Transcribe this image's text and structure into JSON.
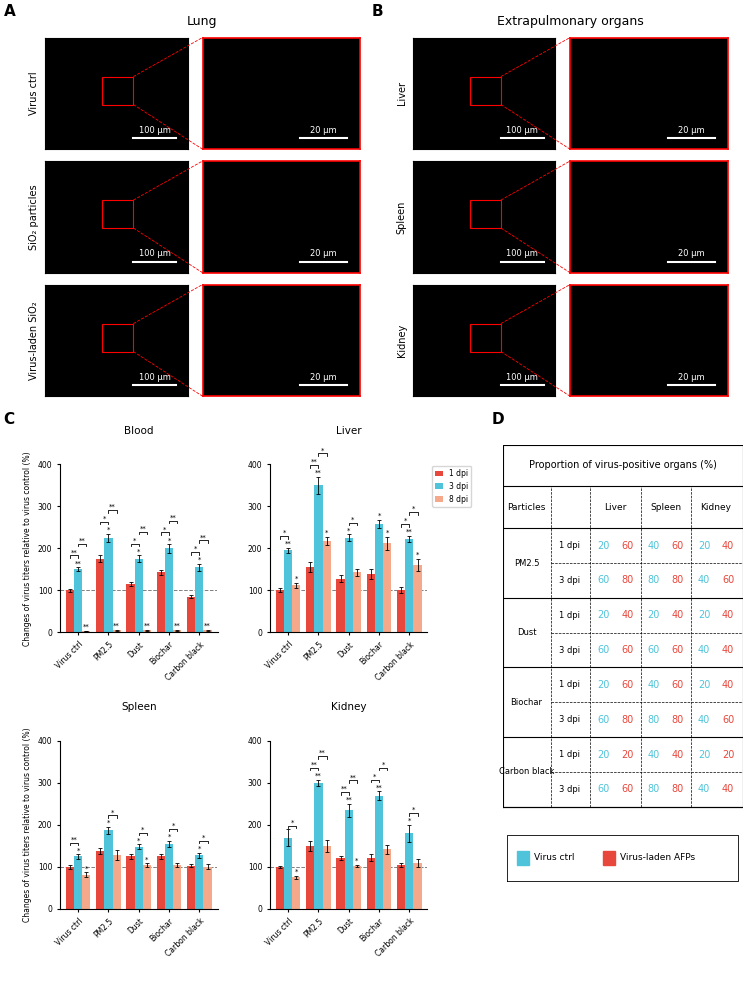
{
  "images": {
    "scale_bars": [
      "100 µm",
      "20 µm"
    ],
    "panels": [
      {
        "label": "A",
        "title": "Lung",
        "rows": [
          "Virus ctrl",
          "SiO₂ particles",
          "Virus-laden SiO₂"
        ]
      },
      {
        "label": "B",
        "title": "Extrapulmonary organs",
        "rows": [
          "Liver",
          "Spleen",
          "Kidney"
        ]
      }
    ]
  },
  "chart_label": "C",
  "chart_data": [
    {
      "type": "bar",
      "title": "Blood",
      "ylabel": "Changes of virus titers relative to virus control (%)",
      "categories": [
        "Virus ctrl",
        "PM2.5",
        "Dust",
        "Biochar",
        "Carbon black"
      ],
      "reference": 100,
      "ylim": [
        0,
        400
      ],
      "yticks": [
        0,
        100,
        200,
        300,
        400
      ],
      "series": [
        {
          "name": "1 dpi",
          "color": "#e8473c",
          "values": [
            100,
            175,
            115,
            143,
            85
          ],
          "errors": [
            4,
            8,
            4,
            6,
            3
          ],
          "sig": [
            null,
            null,
            null,
            null,
            null
          ]
        },
        {
          "name": "3 dpi",
          "color": "#4fc3d9",
          "values": [
            150,
            225,
            175,
            200,
            155
          ],
          "errors": [
            5,
            10,
            8,
            10,
            8
          ],
          "sig": [
            "**",
            "*",
            "*",
            "*",
            "*"
          ]
        },
        {
          "name": "8 dpi",
          "color": "#f5a98a",
          "values": [
            3,
            5,
            5,
            5,
            5
          ],
          "errors": [
            1,
            1,
            1,
            1,
            1
          ],
          "sig": [
            "**",
            "**",
            "**",
            "**",
            "**"
          ]
        }
      ],
      "brackets": [
        {
          "category": "Virus ctrl",
          "between": [
            "1 dpi",
            "3 dpi"
          ],
          "label": "**"
        },
        {
          "category": "Virus ctrl",
          "between": [
            "3 dpi",
            "8 dpi"
          ],
          "label": "**"
        },
        {
          "category": "PM2.5",
          "between": [
            "1 dpi",
            "3 dpi"
          ],
          "label": "*"
        },
        {
          "category": "PM2.5",
          "between": [
            "3 dpi",
            "8 dpi"
          ],
          "label": "**"
        },
        {
          "category": "Dust",
          "between": [
            "1 dpi",
            "3 dpi"
          ],
          "label": "*"
        },
        {
          "category": "Dust",
          "between": [
            "3 dpi",
            "8 dpi"
          ],
          "label": "**"
        },
        {
          "category": "Biochar",
          "between": [
            "1 dpi",
            "3 dpi"
          ],
          "label": "*"
        },
        {
          "category": "Biochar",
          "between": [
            "3 dpi",
            "8 dpi"
          ],
          "label": "**"
        },
        {
          "category": "Carbon black",
          "between": [
            "1 dpi",
            "3 dpi"
          ],
          "label": "*"
        },
        {
          "category": "Carbon black",
          "between": [
            "3 dpi",
            "8 dpi"
          ],
          "label": "**"
        }
      ]
    },
    {
      "type": "bar",
      "title": "Liver",
      "legend": "upper left",
      "categories": [
        "Virus ctrl",
        "PM2.5",
        "Dust",
        "Biochar",
        "Carbon black"
      ],
      "reference": 100,
      "ylim": [
        0,
        400
      ],
      "yticks": [
        0,
        100,
        200,
        300,
        400
      ],
      "series": [
        {
          "name": "1 dpi",
          "color": "#e8473c",
          "values": [
            100,
            155,
            128,
            138,
            100
          ],
          "errors": [
            5,
            12,
            8,
            12,
            7
          ],
          "sig": [
            null,
            null,
            null,
            null,
            null
          ]
        },
        {
          "name": "3 dpi",
          "color": "#4fc3d9",
          "values": [
            195,
            350,
            225,
            258,
            222
          ],
          "errors": [
            6,
            20,
            8,
            10,
            8
          ],
          "sig": [
            "**",
            "**",
            "*",
            "*",
            "**"
          ]
        },
        {
          "name": "8 dpi",
          "color": "#f5a98a",
          "values": [
            112,
            218,
            143,
            212,
            160
          ],
          "errors": [
            6,
            10,
            8,
            15,
            15
          ],
          "sig": [
            "*",
            "*",
            null,
            "*",
            "*"
          ]
        }
      ],
      "brackets": [
        {
          "category": "Virus ctrl",
          "between": [
            "1 dpi",
            "3 dpi"
          ],
          "label": "*"
        },
        {
          "category": "PM2.5",
          "between": [
            "1 dpi",
            "3 dpi"
          ],
          "label": "**"
        },
        {
          "category": "PM2.5",
          "between": [
            "3 dpi",
            "8 dpi"
          ],
          "label": "*"
        },
        {
          "category": "Dust",
          "between": [
            "3 dpi",
            "8 dpi"
          ],
          "label": "*"
        },
        {
          "category": "Carbon black",
          "between": [
            "1 dpi",
            "3 dpi"
          ],
          "label": "*"
        },
        {
          "category": "Carbon black",
          "between": [
            "3 dpi",
            "8 dpi"
          ],
          "label": "*"
        }
      ]
    },
    {
      "type": "bar",
      "title": "Spleen",
      "ylabel": "Changes of virus titers relative to virus control (%)",
      "categories": [
        "Virus ctrl",
        "PM2.5",
        "Dust",
        "Biochar",
        "Carbon black"
      ],
      "reference": 100,
      "ylim": [
        0,
        400
      ],
      "yticks": [
        0,
        100,
        200,
        300,
        400
      ],
      "series": [
        {
          "name": "1 dpi",
          "color": "#e8473c",
          "values": [
            100,
            138,
            125,
            125,
            103
          ],
          "errors": [
            4,
            8,
            6,
            7,
            3
          ],
          "sig": [
            null,
            null,
            null,
            null,
            null
          ]
        },
        {
          "name": "3 dpi",
          "color": "#4fc3d9",
          "values": [
            125,
            187,
            148,
            155,
            128
          ],
          "errors": [
            5,
            8,
            6,
            8,
            6
          ],
          "sig": [
            "*",
            "*",
            "*",
            "*",
            "*"
          ]
        },
        {
          "name": "8 dpi",
          "color": "#f5a98a",
          "values": [
            82,
            128,
            105,
            105,
            100
          ],
          "errors": [
            5,
            12,
            4,
            4,
            6
          ],
          "sig": [
            "*",
            null,
            "*",
            null,
            null
          ]
        }
      ],
      "brackets": [
        {
          "category": "Virus ctrl",
          "between": [
            "1 dpi",
            "3 dpi"
          ],
          "label": "**"
        },
        {
          "category": "PM2.5",
          "between": [
            "3 dpi",
            "8 dpi"
          ],
          "label": "*"
        },
        {
          "category": "Dust",
          "between": [
            "3 dpi",
            "8 dpi"
          ],
          "label": "*"
        },
        {
          "category": "Biochar",
          "between": [
            "3 dpi",
            "8 dpi"
          ],
          "label": "*"
        },
        {
          "category": "Carbon black",
          "between": [
            "3 dpi",
            "8 dpi"
          ],
          "label": "*"
        }
      ]
    },
    {
      "type": "bar",
      "title": "Kidney",
      "categories": [
        "Virus ctrl",
        "PM2.5",
        "Dust",
        "Biochar",
        "Carbon black"
      ],
      "reference": 100,
      "ylim": [
        0,
        400
      ],
      "yticks": [
        0,
        100,
        200,
        300,
        400
      ],
      "series": [
        {
          "name": "1 dpi",
          "color": "#e8473c",
          "values": [
            100,
            150,
            122,
            122,
            105
          ],
          "errors": [
            3,
            12,
            5,
            8,
            5
          ],
          "sig": [
            null,
            null,
            null,
            null,
            null
          ]
        },
        {
          "name": "3 dpi",
          "color": "#4fc3d9",
          "values": [
            170,
            300,
            235,
            270,
            180
          ],
          "errors": [
            20,
            8,
            15,
            10,
            20
          ],
          "sig": [
            null,
            "**",
            "**",
            "**",
            "*"
          ]
        },
        {
          "name": "8 dpi",
          "color": "#f5a98a",
          "values": [
            75,
            150,
            102,
            142,
            110
          ],
          "errors": [
            4,
            15,
            3,
            10,
            10
          ],
          "sig": [
            "*",
            null,
            "*",
            null,
            null
          ]
        }
      ],
      "brackets": [
        {
          "category": "Virus ctrl",
          "between": [
            "3 dpi",
            "8 dpi"
          ],
          "label": "*"
        },
        {
          "category": "PM2.5",
          "between": [
            "1 dpi",
            "3 dpi"
          ],
          "label": "**"
        },
        {
          "category": "PM2.5",
          "between": [
            "3 dpi",
            "8 dpi"
          ],
          "label": "**"
        },
        {
          "category": "Dust",
          "between": [
            "1 dpi",
            "3 dpi"
          ],
          "label": "**"
        },
        {
          "category": "Dust",
          "between": [
            "3 dpi",
            "8 dpi"
          ],
          "label": "**"
        },
        {
          "category": "Biochar",
          "between": [
            "1 dpi",
            "3 dpi"
          ],
          "label": "*"
        },
        {
          "category": "Biochar",
          "between": [
            "3 dpi",
            "8 dpi"
          ],
          "label": "*"
        },
        {
          "category": "Carbon black",
          "between": [
            "3 dpi",
            "8 dpi"
          ],
          "label": "*"
        }
      ]
    }
  ],
  "table": {
    "label": "D",
    "title": "Proportion of virus-positive organs (%)",
    "header": [
      "Particles",
      "Liver",
      "Spleen",
      "Kidney"
    ],
    "series": [
      {
        "name": "Virus ctrl",
        "color": "#4fc3d9"
      },
      {
        "name": "Virus-laden AFPs",
        "color": "#e8473c"
      }
    ],
    "rows": [
      {
        "particle": "PM2.5",
        "times": [
          {
            "time": "1 dpi",
            "values": [
              [
                20,
                60
              ],
              [
                40,
                60
              ],
              [
                20,
                40
              ]
            ]
          },
          {
            "time": "3 dpi",
            "values": [
              [
                60,
                80
              ],
              [
                80,
                80
              ],
              [
                40,
                60
              ]
            ]
          }
        ]
      },
      {
        "particle": "Dust",
        "times": [
          {
            "time": "1 dpi",
            "values": [
              [
                20,
                40
              ],
              [
                20,
                40
              ],
              [
                20,
                40
              ]
            ]
          },
          {
            "time": "3 dpi",
            "values": [
              [
                60,
                60
              ],
              [
                60,
                60
              ],
              [
                40,
                40
              ]
            ]
          }
        ]
      },
      {
        "particle": "Biochar",
        "times": [
          {
            "time": "1 dpi",
            "values": [
              [
                20,
                60
              ],
              [
                40,
                60
              ],
              [
                20,
                40
              ]
            ]
          },
          {
            "time": "3 dpi",
            "values": [
              [
                60,
                80
              ],
              [
                80,
                80
              ],
              [
                40,
                60
              ]
            ]
          }
        ]
      },
      {
        "particle": "Carbon black",
        "times": [
          {
            "time": "1 dpi",
            "values": [
              [
                20,
                20
              ],
              [
                40,
                40
              ],
              [
                20,
                20
              ]
            ]
          },
          {
            "time": "3 dpi",
            "values": [
              [
                60,
                60
              ],
              [
                80,
                80
              ],
              [
                40,
                40
              ]
            ]
          }
        ]
      }
    ]
  }
}
